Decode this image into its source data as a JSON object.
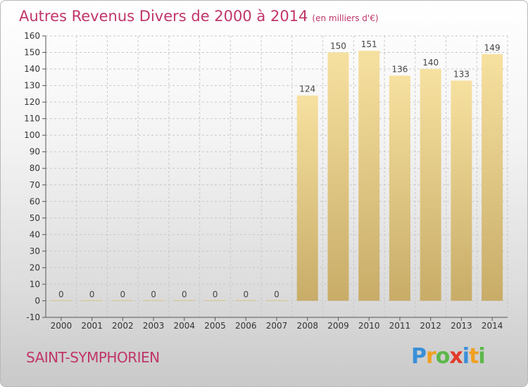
{
  "title": {
    "main": "Autres Revenus Divers de 2000 à 2014",
    "unit": "(en milliers d'€)"
  },
  "commune": "SAINT-SYMPHORIEN",
  "logo": {
    "letters": [
      "P",
      "r",
      "o",
      "x",
      "i",
      "t",
      "i"
    ],
    "colors": [
      "#3a8fd8",
      "#f0a020",
      "#5cb84a",
      "#e23a2a",
      "#3a8fd8",
      "#f0a020",
      "#5cb84a"
    ]
  },
  "colors": {
    "bar_light": "#f7e1a0",
    "bar_dark": "#c8ac68",
    "grid": "#c8c8c8",
    "title": "#c0356a"
  },
  "chart_data": {
    "type": "bar",
    "categories": [
      "2000",
      "2001",
      "2002",
      "2003",
      "2004",
      "2005",
      "2006",
      "2007",
      "2008",
      "2009",
      "2010",
      "2011",
      "2012",
      "2013",
      "2014"
    ],
    "values": [
      0,
      0,
      0,
      0,
      0,
      0,
      0,
      0,
      124,
      150,
      151,
      136,
      140,
      133,
      149
    ],
    "ylim": [
      -10,
      160
    ],
    "yticks": [
      -10,
      0,
      10,
      20,
      30,
      40,
      50,
      60,
      70,
      80,
      90,
      100,
      110,
      120,
      130,
      140,
      150,
      160
    ],
    "grid": true,
    "legend": "none"
  }
}
